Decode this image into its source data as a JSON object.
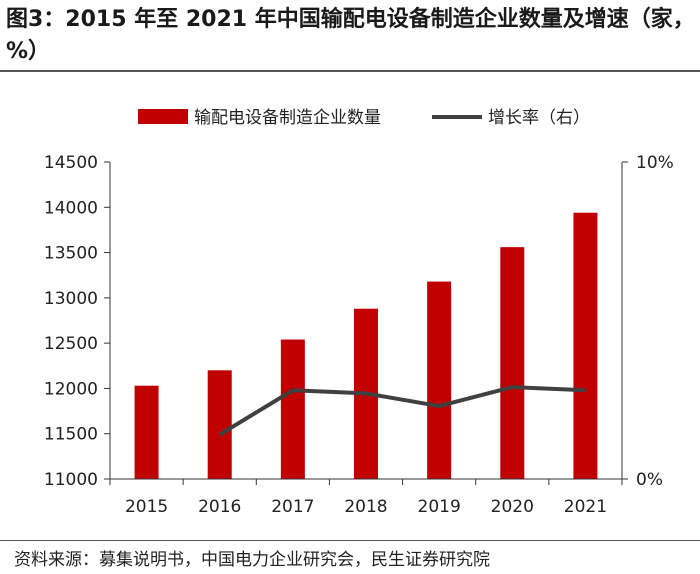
{
  "header": {
    "title": "图3：2015 年至 2021 年中国输配电设备制造企业数量及增速（家，%）"
  },
  "footer": {
    "source": "资料来源：募集说明书，中国电力企业研究会，民生证券研究院"
  },
  "chart_data": {
    "type": "bar",
    "categories": [
      "2015",
      "2016",
      "2017",
      "2018",
      "2019",
      "2020",
      "2021"
    ],
    "series": [
      {
        "name": "输配电设备制造企业数量",
        "type": "bar",
        "axis": "left",
        "color": "#c00000",
        "values": [
          12030,
          12200,
          12540,
          12880,
          13180,
          13560,
          13940
        ]
      },
      {
        "name": "增长率（右）",
        "type": "line",
        "axis": "right",
        "color": "#404040",
        "values": [
          null,
          1.4,
          2.8,
          2.7,
          2.3,
          2.9,
          2.8
        ]
      }
    ],
    "ylim": [
      11000,
      14500
    ],
    "yticks": [
      "11000",
      "11500",
      "12000",
      "12500",
      "13000",
      "13500",
      "14000",
      "14500"
    ],
    "y2lim": [
      0,
      10
    ],
    "y2ticks": [
      "0%",
      "10%"
    ],
    "legend_position": "top",
    "grid": false
  }
}
